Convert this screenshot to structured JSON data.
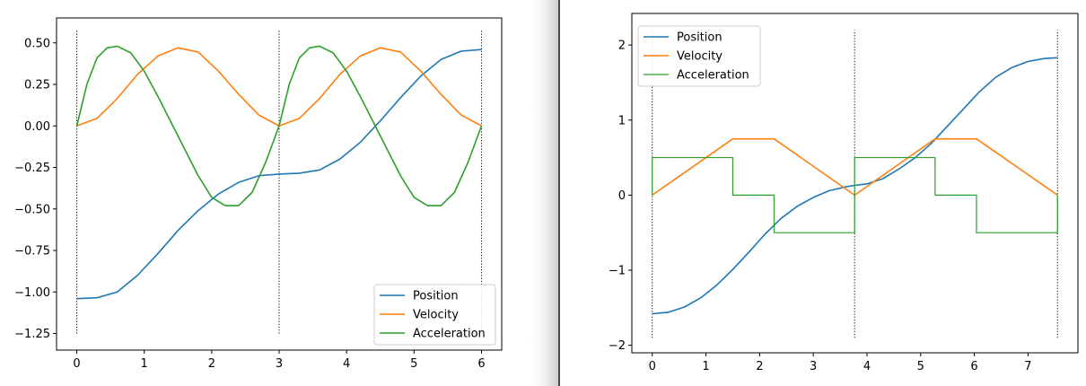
{
  "chart_data": [
    {
      "type": "line",
      "title": "",
      "xlabel": "",
      "ylabel": "",
      "xlim": [
        -0.3,
        6.3
      ],
      "ylim": [
        -1.35,
        0.65
      ],
      "x_ticks": [
        "0",
        "1",
        "2",
        "3",
        "4",
        "5",
        "6"
      ],
      "y_ticks": [
        "0.50",
        "0.25",
        "0.00",
        "−0.25",
        "−0.50",
        "−0.75",
        "−1.00",
        "−1.25"
      ],
      "grid": false,
      "legend_position": "lower-right",
      "segment_markers": [
        0,
        3,
        6
      ],
      "segment_marker_range": [
        -1.25,
        0.58
      ],
      "series": [
        {
          "name": "Position",
          "color": "#1f77b4",
          "x": [
            0,
            0.3,
            0.6,
            0.9,
            1.2,
            1.5,
            1.8,
            2.1,
            2.4,
            2.7,
            3.0,
            3.3,
            3.6,
            3.9,
            4.2,
            4.5,
            4.8,
            5.1,
            5.4,
            5.7,
            6.0
          ],
          "values": [
            -1.04,
            -1.035,
            -1.0,
            -0.9,
            -0.77,
            -0.63,
            -0.51,
            -0.41,
            -0.34,
            -0.3,
            -0.29,
            -0.285,
            -0.265,
            -0.2,
            -0.1,
            0.03,
            0.17,
            0.3,
            0.4,
            0.45,
            0.46
          ]
        },
        {
          "name": "Velocity",
          "color": "#ff7f0e",
          "x": [
            0,
            0.3,
            0.6,
            0.9,
            1.2,
            1.5,
            1.8,
            2.1,
            2.4,
            2.7,
            3.0,
            3.3,
            3.6,
            3.9,
            4.2,
            4.5,
            4.8,
            5.1,
            5.4,
            5.7,
            6.0
          ],
          "values": [
            0,
            0.045,
            0.165,
            0.31,
            0.42,
            0.47,
            0.445,
            0.33,
            0.19,
            0.065,
            0,
            0.045,
            0.165,
            0.31,
            0.42,
            0.47,
            0.445,
            0.33,
            0.19,
            0.065,
            0
          ]
        },
        {
          "name": "Acceleration",
          "color": "#2ca02c",
          "x": [
            0,
            0.15,
            0.3,
            0.45,
            0.6,
            0.8,
            1.0,
            1.2,
            1.5,
            1.8,
            2.0,
            2.2,
            2.4,
            2.6,
            2.8,
            3.0,
            3.15,
            3.3,
            3.45,
            3.6,
            3.8,
            4.0,
            4.2,
            4.5,
            4.8,
            5.0,
            5.2,
            5.4,
            5.6,
            5.8,
            6.0
          ],
          "values": [
            0,
            0.25,
            0.41,
            0.47,
            0.48,
            0.44,
            0.33,
            0.18,
            -0.06,
            -0.3,
            -0.43,
            -0.48,
            -0.48,
            -0.4,
            -0.22,
            0,
            0.25,
            0.41,
            0.47,
            0.48,
            0.44,
            0.33,
            0.18,
            -0.06,
            -0.3,
            -0.43,
            -0.48,
            -0.48,
            -0.4,
            -0.22,
            0
          ]
        }
      ]
    },
    {
      "type": "line",
      "title": "",
      "xlabel": "",
      "ylabel": "",
      "xlim": [
        -0.38,
        7.93
      ],
      "ylim": [
        -2.1,
        2.42
      ],
      "x_ticks": [
        "0",
        "1",
        "2",
        "3",
        "4",
        "5",
        "6",
        "7"
      ],
      "y_ticks": [
        "2",
        "1",
        "0",
        "−1",
        "−2"
      ],
      "grid": false,
      "legend_position": "top-left",
      "segment_markers": [
        0,
        3.77,
        7.55
      ],
      "segment_marker_range": [
        -1.9,
        2.2
      ],
      "series": [
        {
          "name": "Position",
          "color": "#1f77b4",
          "x": [
            0,
            0.3,
            0.6,
            0.9,
            1.2,
            1.5,
            1.8,
            2.1,
            2.4,
            2.7,
            3.0,
            3.3,
            3.6,
            3.77,
            4.0,
            4.3,
            4.6,
            4.9,
            5.2,
            5.5,
            5.8,
            6.1,
            6.4,
            6.7,
            7.0,
            7.3,
            7.55
          ],
          "values": [
            -1.58,
            -1.56,
            -1.49,
            -1.37,
            -1.2,
            -0.99,
            -0.76,
            -0.52,
            -0.31,
            -0.15,
            -0.03,
            0.06,
            0.11,
            0.13,
            0.15,
            0.22,
            0.35,
            0.5,
            0.69,
            0.92,
            1.15,
            1.38,
            1.57,
            1.7,
            1.78,
            1.82,
            1.83
          ]
        },
        {
          "name": "Velocity",
          "color": "#ff7f0e",
          "x": [
            0,
            1.5,
            2.27,
            3.77,
            5.27,
            6.04,
            7.55
          ],
          "values": [
            0,
            0.75,
            0.75,
            0,
            0.75,
            0.75,
            0
          ]
        },
        {
          "name": "Acceleration",
          "color": "#2ca02c",
          "x": [
            0,
            0,
            1.5,
            1.5,
            2.27,
            2.27,
            3.77,
            3.77,
            5.27,
            5.27,
            6.04,
            6.04,
            7.55,
            7.55
          ],
          "values": [
            0,
            0.5,
            0.5,
            0,
            0,
            -0.5,
            -0.5,
            0.5,
            0.5,
            0,
            0,
            -0.5,
            -0.5,
            0
          ]
        }
      ]
    }
  ]
}
